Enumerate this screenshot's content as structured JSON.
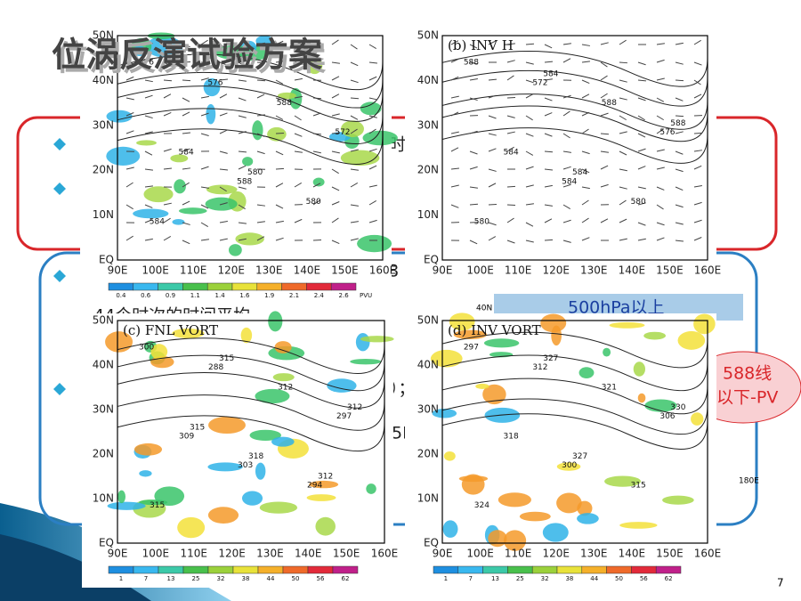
{
  "header": {
    "title": "位涡反演试验方案"
  },
  "background_text": [
    "时",
    "8",
    "44个时次的时间平均",
    "）；",
    "5H）",
    "500hPa以上",
    "588线",
    "以下-PV",
    "40N",
    "180E"
  ],
  "panels": [
    {
      "label": null,
      "lat_ticks": [
        "50N",
        "40N",
        "30N",
        "20N",
        "10N",
        "EQ"
      ],
      "lon_ticks": [
        "90E",
        "100E",
        "110E",
        "120E",
        "130E",
        "140E",
        "150E",
        "160E"
      ],
      "colorbar_ticks": [
        "0.4",
        "0.6",
        "0.9",
        "1.1",
        "1.4",
        "1.6",
        "1.9",
        "2.1",
        "2.4",
        "2.6"
      ],
      "colorbar_unit": "PVU",
      "contour_labels": [
        "576",
        "588",
        "572",
        "576",
        "580",
        "584",
        "588",
        "584",
        "580"
      ]
    },
    {
      "label": "(b) INV H",
      "lat_ticks": [
        "50N",
        "40N",
        "30N",
        "20N",
        "10N",
        "EQ"
      ],
      "lon_ticks": [
        "90E",
        "100E",
        "110E",
        "120E",
        "130E",
        "140E",
        "150E",
        "160E"
      ],
      "colorbar_ticks": [],
      "colorbar_unit": null,
      "contour_labels": [
        "588",
        "584",
        "576",
        "572",
        "580",
        "584",
        "588",
        "580",
        "584",
        "588",
        "584"
      ]
    },
    {
      "label": "(c) FNL VORT",
      "lat_ticks": [
        "50N",
        "40N",
        "30N",
        "20N",
        "10N",
        "EQ"
      ],
      "lon_ticks": [
        "90E",
        "100E",
        "110E",
        "120E",
        "130E",
        "140E",
        "150E",
        "160E"
      ],
      "colorbar_ticks": [
        "1",
        "7",
        "13",
        "25",
        "32",
        "38",
        "44",
        "50",
        "56",
        "62"
      ],
      "colorbar_unit": null,
      "contour_labels": [
        "300",
        "303",
        "297",
        "288",
        "294",
        "309",
        "312",
        "315",
        "318",
        "312",
        "315",
        "312",
        "315"
      ]
    },
    {
      "label": "(d) INV VORT",
      "lat_ticks": [
        "50N",
        "40N",
        "30N",
        "20N",
        "10N",
        "EQ"
      ],
      "lon_ticks": [
        "90E",
        "100E",
        "110E",
        "120E",
        "130E",
        "140E",
        "150E",
        "160E"
      ],
      "colorbar_ticks": [
        "1",
        "7",
        "13",
        "25",
        "32",
        "38",
        "44",
        "50",
        "56",
        "62"
      ],
      "colorbar_unit": null,
      "contour_labels": [
        "297",
        "300",
        "306",
        "312",
        "315",
        "318",
        "321",
        "324",
        "327",
        "330",
        "327"
      ]
    }
  ],
  "page_number": "7"
}
